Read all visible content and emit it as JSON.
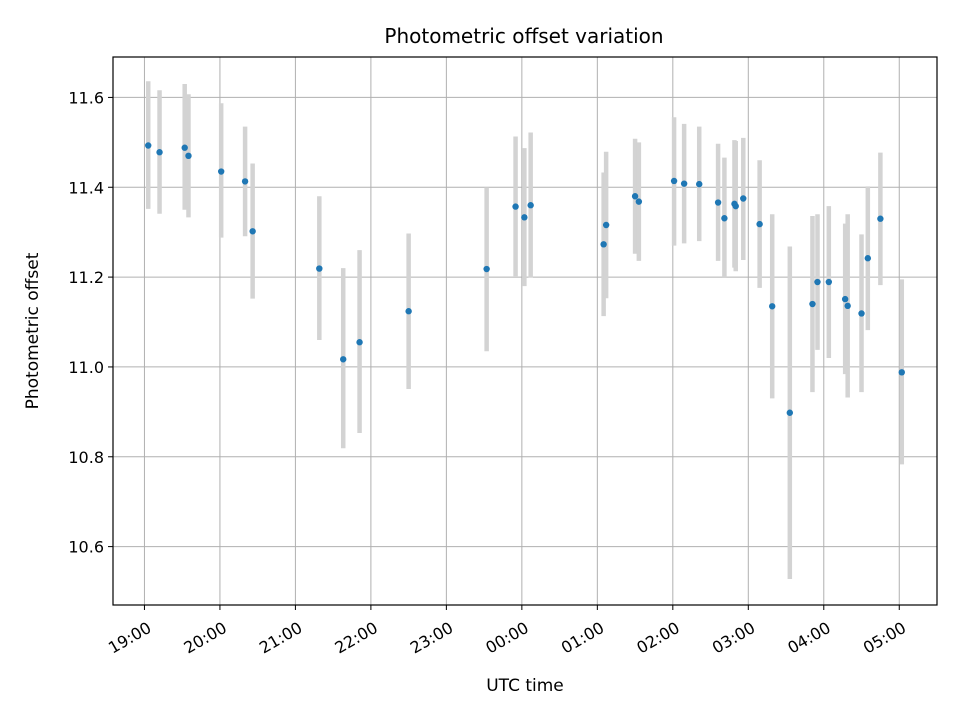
{
  "chart_data": {
    "type": "scatter",
    "title": "Photometric offset variation",
    "xlabel": "UTC time",
    "ylabel": "Photometric offset",
    "xlim": [
      "18:35",
      "05:30"
    ],
    "ylim": [
      10.47,
      11.69
    ],
    "grid": true,
    "x_tick_labels": [
      "19:00",
      "20:00",
      "21:00",
      "22:00",
      "23:00",
      "00:00",
      "01:00",
      "02:00",
      "03:00",
      "04:00",
      "05:00"
    ],
    "x_tick_times": [
      "19:00",
      "20:00",
      "21:00",
      "22:00",
      "23:00",
      "00:00",
      "01:00",
      "02:00",
      "03:00",
      "04:00",
      "05:00"
    ],
    "y_ticks": [
      10.6,
      10.8,
      11.0,
      11.2,
      11.4,
      11.6
    ],
    "y_tick_labels": [
      "10.6",
      "10.8",
      "11.0",
      "11.2",
      "11.4",
      "11.6"
    ],
    "colors": {
      "point": "#1f77b4",
      "errorbar": "#d3d3d3",
      "grid": "#b0b0b0"
    },
    "series": [
      {
        "points": [
          {
            "t": "19:03",
            "y": 11.493,
            "lo": 11.352,
            "hi": 11.636
          },
          {
            "t": "19:12",
            "y": 11.478,
            "lo": 11.341,
            "hi": 11.616
          },
          {
            "t": "19:32",
            "y": 11.488,
            "lo": 11.35,
            "hi": 11.63
          },
          {
            "t": "19:35",
            "y": 11.47,
            "lo": 11.333,
            "hi": 11.607
          },
          {
            "t": "20:01",
            "y": 11.435,
            "lo": 11.288,
            "hi": 11.587
          },
          {
            "t": "20:20",
            "y": 11.413,
            "lo": 11.291,
            "hi": 11.535
          },
          {
            "t": "20:26",
            "y": 11.302,
            "lo": 11.152,
            "hi": 11.453
          },
          {
            "t": "21:19",
            "y": 11.219,
            "lo": 11.06,
            "hi": 11.38
          },
          {
            "t": "21:38",
            "y": 11.017,
            "lo": 10.819,
            "hi": 11.22
          },
          {
            "t": "21:51",
            "y": 11.055,
            "lo": 10.853,
            "hi": 11.26
          },
          {
            "t": "22:30",
            "y": 11.124,
            "lo": 10.951,
            "hi": 11.297
          },
          {
            "t": "23:32",
            "y": 11.218,
            "lo": 11.035,
            "hi": 11.4
          },
          {
            "t": "23:55",
            "y": 11.357,
            "lo": 11.202,
            "hi": 11.513
          },
          {
            "t": "00:02",
            "y": 11.333,
            "lo": 11.18,
            "hi": 11.487
          },
          {
            "t": "00:07",
            "y": 11.36,
            "lo": 11.199,
            "hi": 11.522
          },
          {
            "t": "01:05",
            "y": 11.273,
            "lo": 11.113,
            "hi": 11.433
          },
          {
            "t": "01:07",
            "y": 11.316,
            "lo": 11.153,
            "hi": 11.479
          },
          {
            "t": "01:30",
            "y": 11.38,
            "lo": 11.252,
            "hi": 11.508
          },
          {
            "t": "01:33",
            "y": 11.368,
            "lo": 11.236,
            "hi": 11.5
          },
          {
            "t": "02:01",
            "y": 11.414,
            "lo": 11.27,
            "hi": 11.556
          },
          {
            "t": "02:09",
            "y": 11.408,
            "lo": 11.275,
            "hi": 11.541
          },
          {
            "t": "02:21",
            "y": 11.407,
            "lo": 11.28,
            "hi": 11.535
          },
          {
            "t": "02:36",
            "y": 11.366,
            "lo": 11.236,
            "hi": 11.497
          },
          {
            "t": "02:41",
            "y": 11.331,
            "lo": 11.198,
            "hi": 11.466
          },
          {
            "t": "02:49",
            "y": 11.363,
            "lo": 11.221,
            "hi": 11.505
          },
          {
            "t": "02:50",
            "y": 11.358,
            "lo": 11.213,
            "hi": 11.503
          },
          {
            "t": "02:56",
            "y": 11.375,
            "lo": 11.238,
            "hi": 11.51
          },
          {
            "t": "03:09",
            "y": 11.318,
            "lo": 11.176,
            "hi": 11.46
          },
          {
            "t": "03:19",
            "y": 11.135,
            "lo": 10.93,
            "hi": 11.34
          },
          {
            "t": "03:33",
            "y": 10.898,
            "lo": 10.528,
            "hi": 11.268
          },
          {
            "t": "03:51",
            "y": 11.14,
            "lo": 10.944,
            "hi": 11.336
          },
          {
            "t": "03:55",
            "y": 11.189,
            "lo": 11.038,
            "hi": 11.34
          },
          {
            "t": "04:04",
            "y": 11.189,
            "lo": 11.02,
            "hi": 11.358
          },
          {
            "t": "04:17",
            "y": 11.151,
            "lo": 10.984,
            "hi": 11.319
          },
          {
            "t": "04:19",
            "y": 11.136,
            "lo": 10.932,
            "hi": 11.34
          },
          {
            "t": "04:30",
            "y": 11.119,
            "lo": 10.944,
            "hi": 11.295
          },
          {
            "t": "04:35",
            "y": 11.242,
            "lo": 11.082,
            "hi": 11.402
          },
          {
            "t": "04:45",
            "y": 11.33,
            "lo": 11.182,
            "hi": 11.477
          },
          {
            "t": "05:02",
            "y": 10.988,
            "lo": 10.783,
            "hi": 11.195
          }
        ]
      }
    ]
  }
}
